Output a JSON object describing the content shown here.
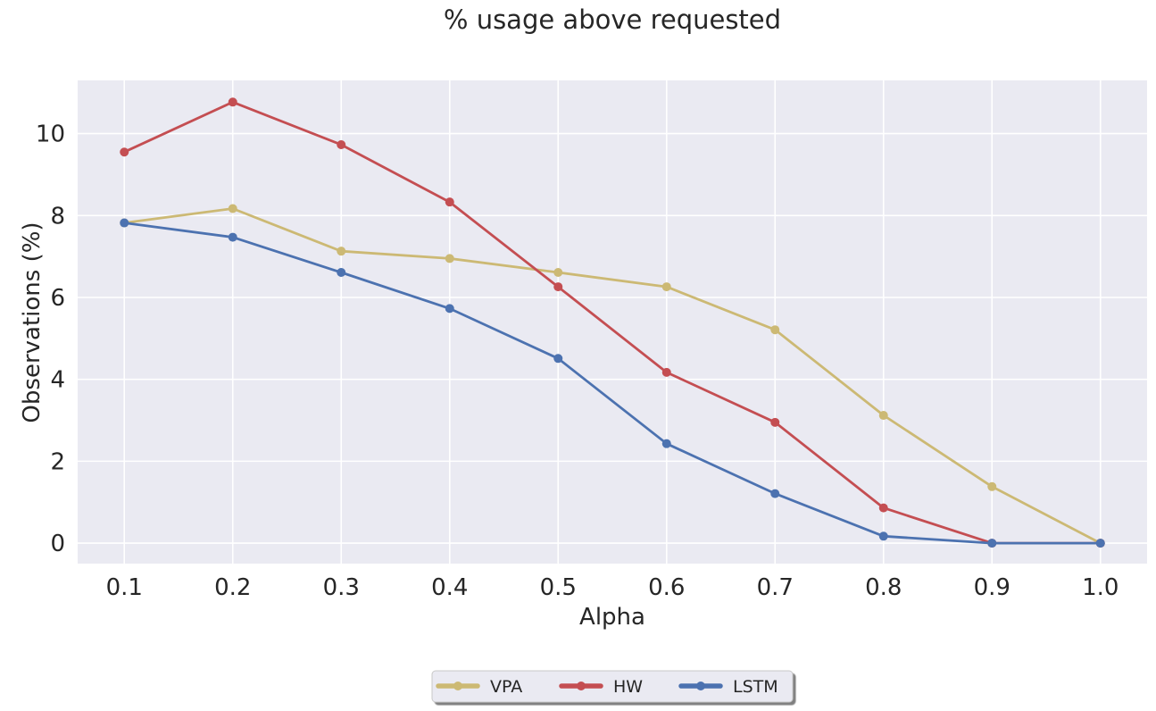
{
  "chart_data": {
    "type": "line",
    "title": "% usage above requested",
    "xlabel": "Alpha",
    "ylabel": "Observations (%)",
    "x": [
      0.1,
      0.2,
      0.3,
      0.4,
      0.5,
      0.6,
      0.7,
      0.8,
      0.9,
      1.0
    ],
    "xtick_labels": [
      "0.1",
      "0.2",
      "0.3",
      "0.4",
      "0.5",
      "0.6",
      "0.7",
      "0.8",
      "0.9",
      "1.0"
    ],
    "yticks": [
      0,
      2,
      4,
      6,
      8,
      10
    ],
    "ytick_labels": [
      "0",
      "2",
      "4",
      "6",
      "8",
      "10"
    ],
    "xlim": [
      0.057,
      1.043
    ],
    "ylim": [
      -0.5,
      11.3
    ],
    "grid": true,
    "legend_position": "bottom-center",
    "series": [
      {
        "name": "VPA",
        "color": "#ccb974",
        "values": [
          7.82,
          8.17,
          7.13,
          6.95,
          6.61,
          6.26,
          5.21,
          3.12,
          1.38,
          0.0
        ]
      },
      {
        "name": "HW",
        "color": "#c44e52",
        "values": [
          9.55,
          10.77,
          9.73,
          8.33,
          6.26,
          4.17,
          2.95,
          0.86,
          0.0,
          0.0
        ]
      },
      {
        "name": "LSTM",
        "color": "#4c72b0",
        "values": [
          7.82,
          7.47,
          6.61,
          5.73,
          4.51,
          2.43,
          1.21,
          0.17,
          0.0,
          0.0
        ]
      }
    ],
    "colors": {
      "plot_background": "#eaeaf2",
      "grid": "#ffffff"
    }
  }
}
